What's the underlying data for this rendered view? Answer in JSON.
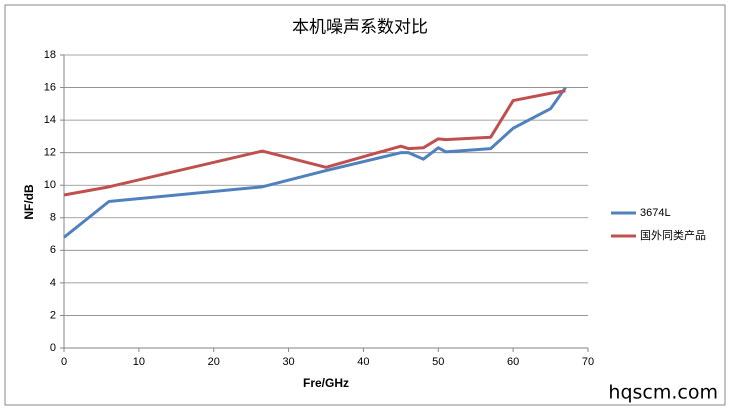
{
  "chart_data": {
    "type": "line",
    "title": "本机噪声系数对比",
    "x_label": "Fre/GHz",
    "y_label": "NF/dB",
    "series": [
      {
        "name": "3674L",
        "color": "#4f81bd",
        "x": [
          0,
          6,
          26.5,
          35,
          45,
          46,
          48,
          50,
          51,
          57,
          60,
          65,
          67
        ],
        "values": [
          6.8,
          9.0,
          9.9,
          10.9,
          12.0,
          12.0,
          11.6,
          12.3,
          12.05,
          12.25,
          13.5,
          14.7,
          16.0
        ]
      },
      {
        "name": "国外同类产品",
        "color": "#c0504d",
        "x": [
          0,
          6,
          26.5,
          35,
          45,
          46,
          48,
          50,
          51,
          57,
          60,
          65,
          67
        ],
        "values": [
          9.4,
          9.9,
          12.1,
          11.1,
          12.4,
          12.25,
          12.3,
          12.85,
          12.8,
          12.95,
          15.2,
          15.65,
          15.8
        ]
      }
    ],
    "xlim": [
      0,
      70
    ],
    "xticks": [
      0,
      10,
      20,
      30,
      40,
      50,
      60,
      70
    ],
    "ylim": [
      0,
      18
    ],
    "yticks": [
      0,
      2,
      4,
      6,
      8,
      10,
      12,
      14,
      16,
      18
    ],
    "grid": true,
    "legend": "right"
  },
  "watermark": "hqscm.com"
}
